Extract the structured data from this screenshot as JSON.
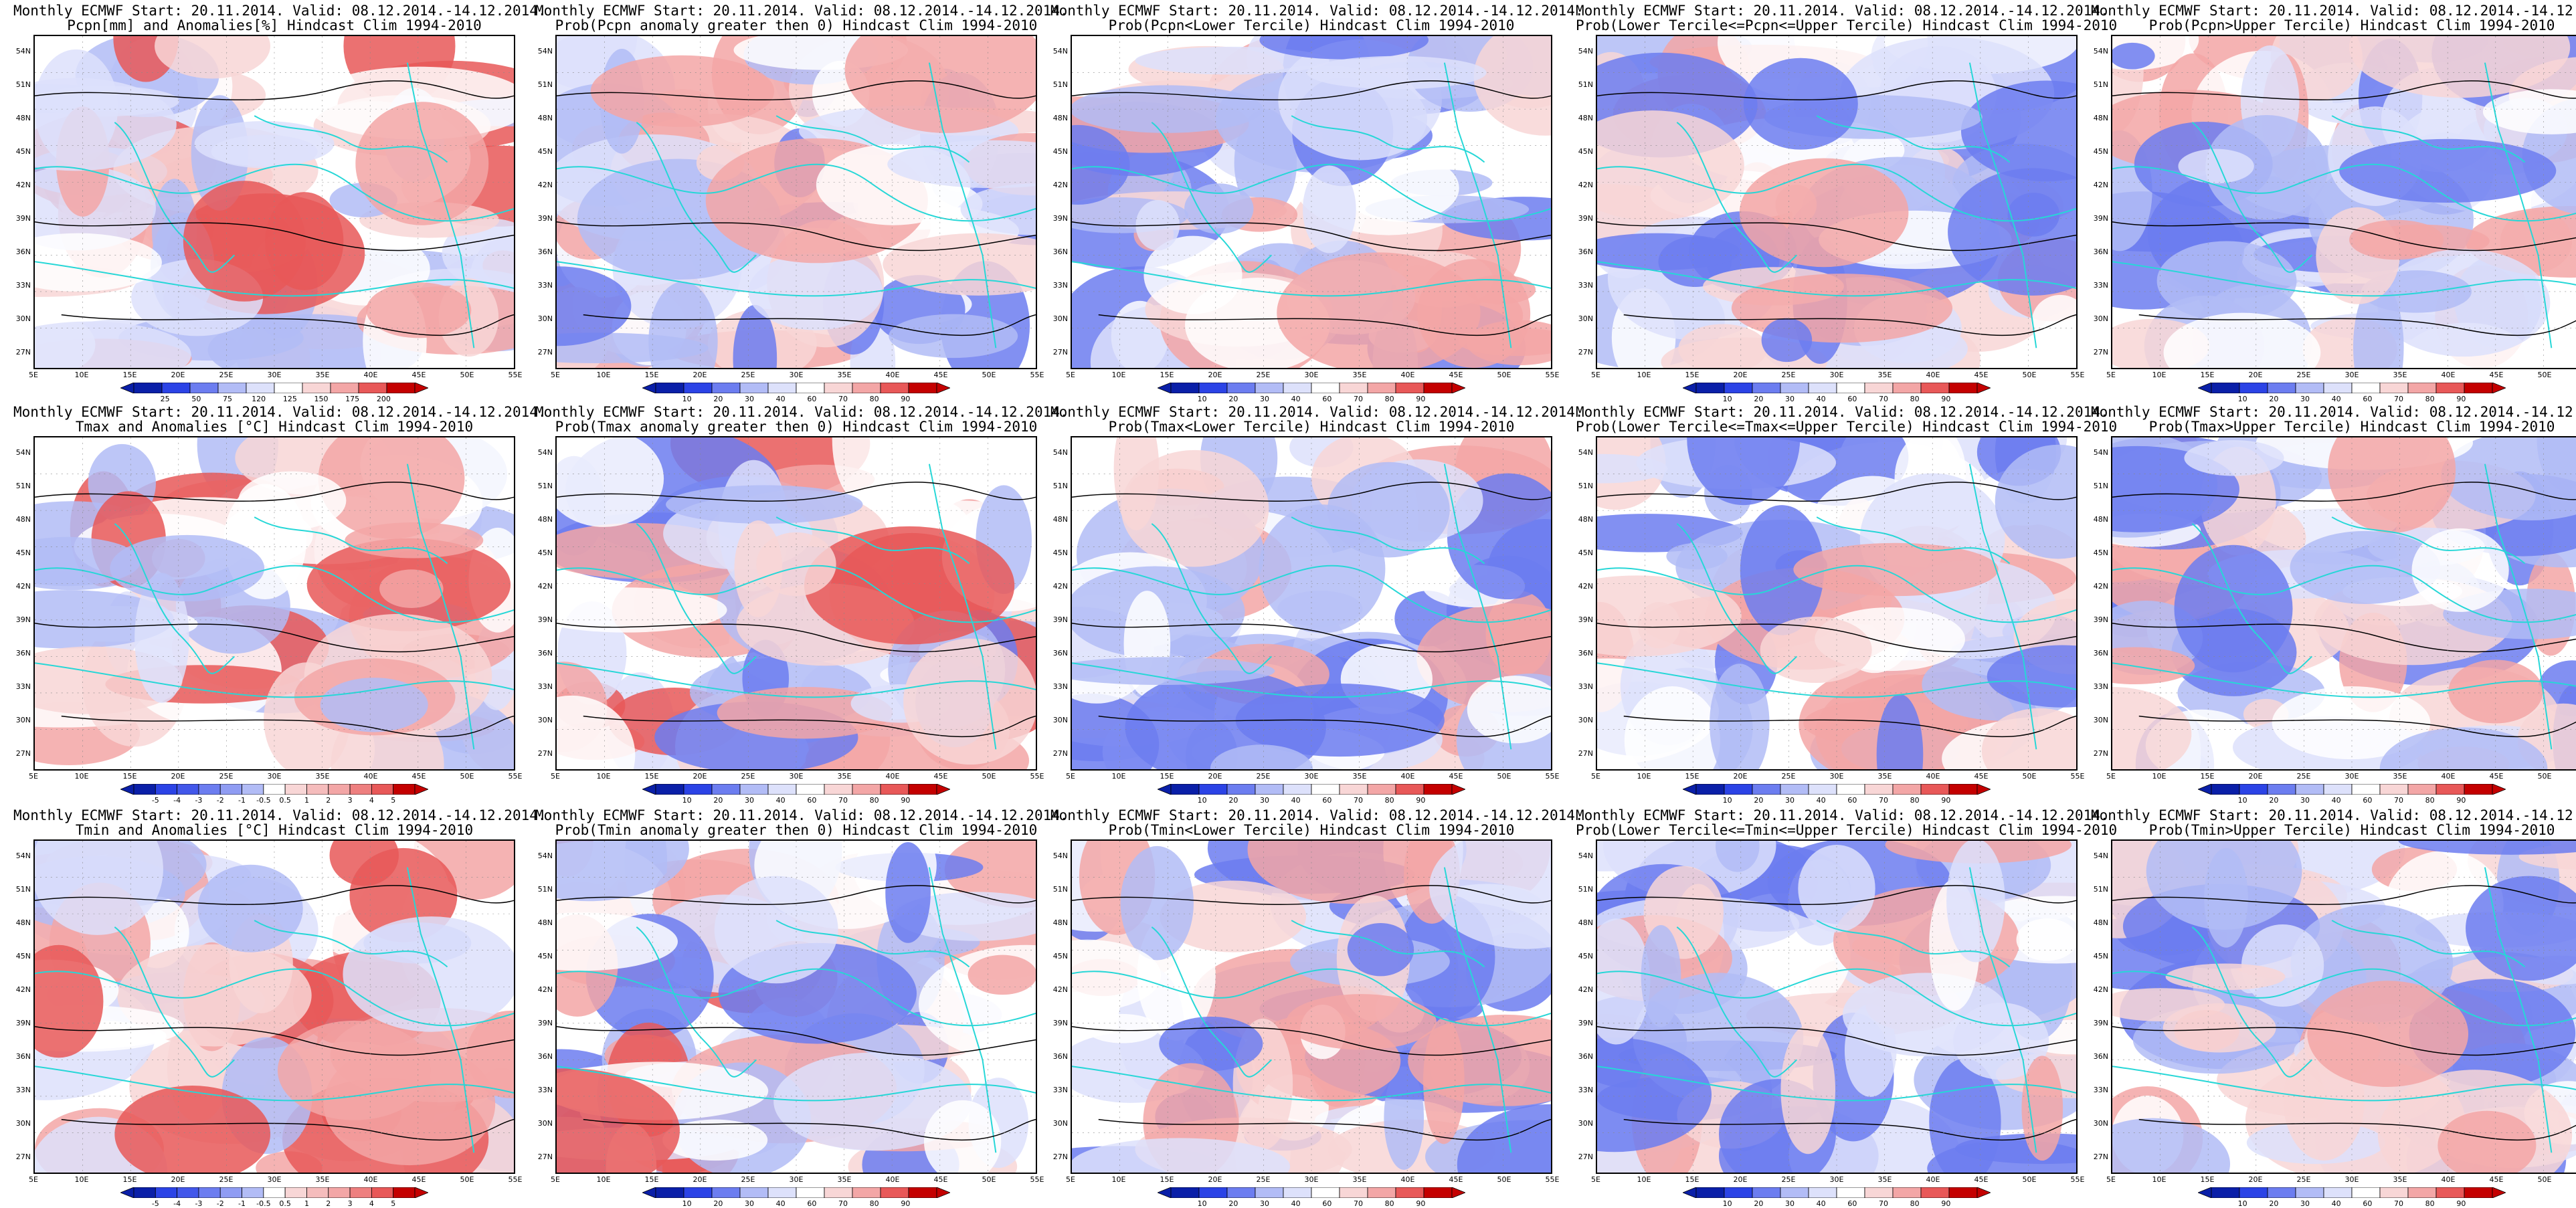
{
  "columns": [
    {
      "title2_pcpn": "Pcpn[mm] and Anomalies[%]",
      "title2_tmax": "Tmax and Anomalies [°C]",
      "title2_tmin": "Tmin and Anomalies [°C]",
      "kind": "anom"
    },
    {
      "title2_pcpn": "Prob(Pcpn anomaly greater then 0)",
      "title2_tmax": "Prob(Tmax anomaly greater then 0)",
      "title2_tmin": "Prob(Tmin anomaly greater then 0)",
      "kind": "prob"
    },
    {
      "title2_pcpn": "Prob(Pcpn<Lower Tercile)",
      "title2_tmax": "Prob(Tmax<Lower Tercile)",
      "title2_tmin": "Prob(Tmin<Lower Tercile)",
      "kind": "prob"
    },
    {
      "title2_pcpn": "Prob(Lower Tercile<=Pcpn<=Upper Tercile)",
      "title2_tmax": "Prob(Lower Tercile<=Tmax<=Upper Tercile)",
      "title2_tmin": "Prob(Lower Tercile<=Tmin<=Upper Tercile)",
      "kind": "prob"
    },
    {
      "title2_pcpn": "Prob(Pcpn>Upper Tercile)",
      "title2_tmax": "Prob(Tmax>Upper Tercile)",
      "title2_tmin": "Prob(Tmin>Upper Tercile)",
      "kind": "prob"
    }
  ],
  "title_line1": "Monthly ECMWF Start: 20.11.2014. Valid: 08.12.2014.-14.12.2014.",
  "hindcast": "Hindcast Clim 1994-2010",
  "lat_labels": [
    "54N",
    "51N",
    "48N",
    "45N",
    "42N",
    "39N",
    "36N",
    "33N",
    "30N",
    "27N"
  ],
  "lon_labels": [
    "5E",
    "10E",
    "15E",
    "20E",
    "25E",
    "30E",
    "35E",
    "40E",
    "45E",
    "50E",
    "55E"
  ],
  "colorbar_labels": {
    "pcpn_anom": [
      "25",
      "50",
      "75",
      "120",
      "125",
      "150",
      "175",
      "200"
    ],
    "temp_anom": [
      "-5",
      "-4",
      "-3",
      "-2",
      "-1",
      "-0.5",
      "0.5",
      "1",
      "2",
      "3",
      "4",
      "5"
    ],
    "prob": [
      "10",
      "20",
      "30",
      "40",
      "60",
      "70",
      "80",
      "90"
    ]
  },
  "colors": {
    "deep_blue": "#0a1fa8",
    "blue": "#2b43e6",
    "mid_blue": "#6c7df0",
    "light_blue": "#b2bcf6",
    "pale_blue": "#dde1fb",
    "white": "#ffffff",
    "pale_red": "#f8d6d6",
    "light_red": "#f3a6a6",
    "red": "#e85858",
    "deep_red": "#c40000",
    "coast": "#26d7d7",
    "contour": "#000000"
  }
}
